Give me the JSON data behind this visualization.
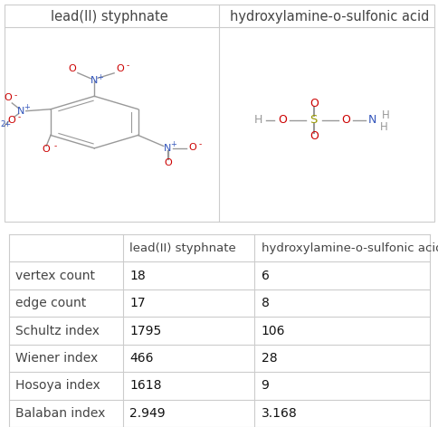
{
  "col_headers": [
    "",
    "lead(II) styphnate",
    "hydroxylamine-o-sulfonic acid"
  ],
  "rows": [
    [
      "vertex count",
      "18",
      "6"
    ],
    [
      "edge count",
      "17",
      "8"
    ],
    [
      "Schultz index",
      "1795",
      "106"
    ],
    [
      "Wiener index",
      "466",
      "28"
    ],
    [
      "Hosoya index",
      "1618",
      "9"
    ],
    [
      "Balaban index",
      "2.949",
      "3.168"
    ]
  ],
  "mol_title_1": "lead(II) styphnate",
  "mol_title_2": "hydroxylamine-o-sulfonic acid",
  "bg_color": "#ffffff",
  "line_color": "#cccccc",
  "red": "#cc0000",
  "blue": "#3355bb",
  "gray_bond": "#999999",
  "sulfur_color": "#999900",
  "text_dark": "#444444",
  "bold_color": "#111111",
  "title_fontsize": 10.5,
  "table_fontsize": 10.0,
  "fig_width": 4.85,
  "fig_height": 4.72,
  "dpi": 100
}
